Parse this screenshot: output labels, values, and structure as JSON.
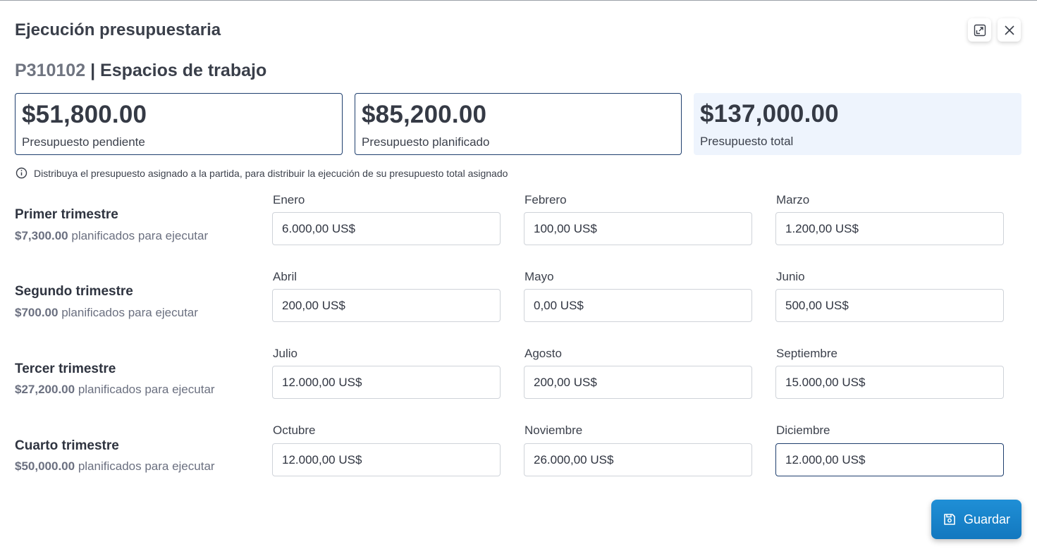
{
  "modal": {
    "title": "Ejecución presupuestaria",
    "expand_icon": "expand-icon",
    "close_icon": "close-icon"
  },
  "item": {
    "code": "P310102",
    "separator": "|",
    "name": "Espacios de trabajo"
  },
  "summary": [
    {
      "amount": "$51,800.00",
      "label": "Presupuesto pendiente"
    },
    {
      "amount": "$85,200.00",
      "label": "Presupuesto planificado"
    },
    {
      "amount": "$137,000.00",
      "label": "Presupuesto total"
    }
  ],
  "info": {
    "icon": "info-icon",
    "text": "Distribuya el presupuesto asignado a la partida, para distribuir la ejecución de su presupuesto total asignado"
  },
  "quarters": [
    {
      "name": "Primer trimestre",
      "amount": "$7,300.00",
      "suffix": "planificados para ejecutar",
      "months": [
        {
          "label": "Enero",
          "value": "6.000,00 US$"
        },
        {
          "label": "Febrero",
          "value": "100,00 US$"
        },
        {
          "label": "Marzo",
          "value": "1.200,00 US$"
        }
      ]
    },
    {
      "name": "Segundo trimestre",
      "amount": "$700.00",
      "suffix": "planificados para ejecutar",
      "months": [
        {
          "label": "Abril",
          "value": "200,00 US$"
        },
        {
          "label": "Mayo",
          "value": "0,00 US$"
        },
        {
          "label": "Junio",
          "value": "500,00 US$"
        }
      ]
    },
    {
      "name": "Tercer trimestre",
      "amount": "$27,200.00",
      "suffix": "planificados para ejecutar",
      "months": [
        {
          "label": "Julio",
          "value": "12.000,00 US$"
        },
        {
          "label": "Agosto",
          "value": "200,00 US$"
        },
        {
          "label": "Septiembre",
          "value": "15.000,00 US$"
        }
      ]
    },
    {
      "name": "Cuarto trimestre",
      "amount": "$50,000.00",
      "suffix": "planificados para ejecutar",
      "months": [
        {
          "label": "Octubre",
          "value": "12.000,00 US$"
        },
        {
          "label": "Noviembre",
          "value": "26.000,00 US$"
        },
        {
          "label": "Diciembre",
          "value": "12.000,00 US$"
        }
      ]
    }
  ],
  "save": {
    "label": "Guardar",
    "icon": "save-icon"
  },
  "colors": {
    "accent": "#1378bf",
    "border_active": "#1f3f6e",
    "card_fill": "#eef4fd"
  }
}
